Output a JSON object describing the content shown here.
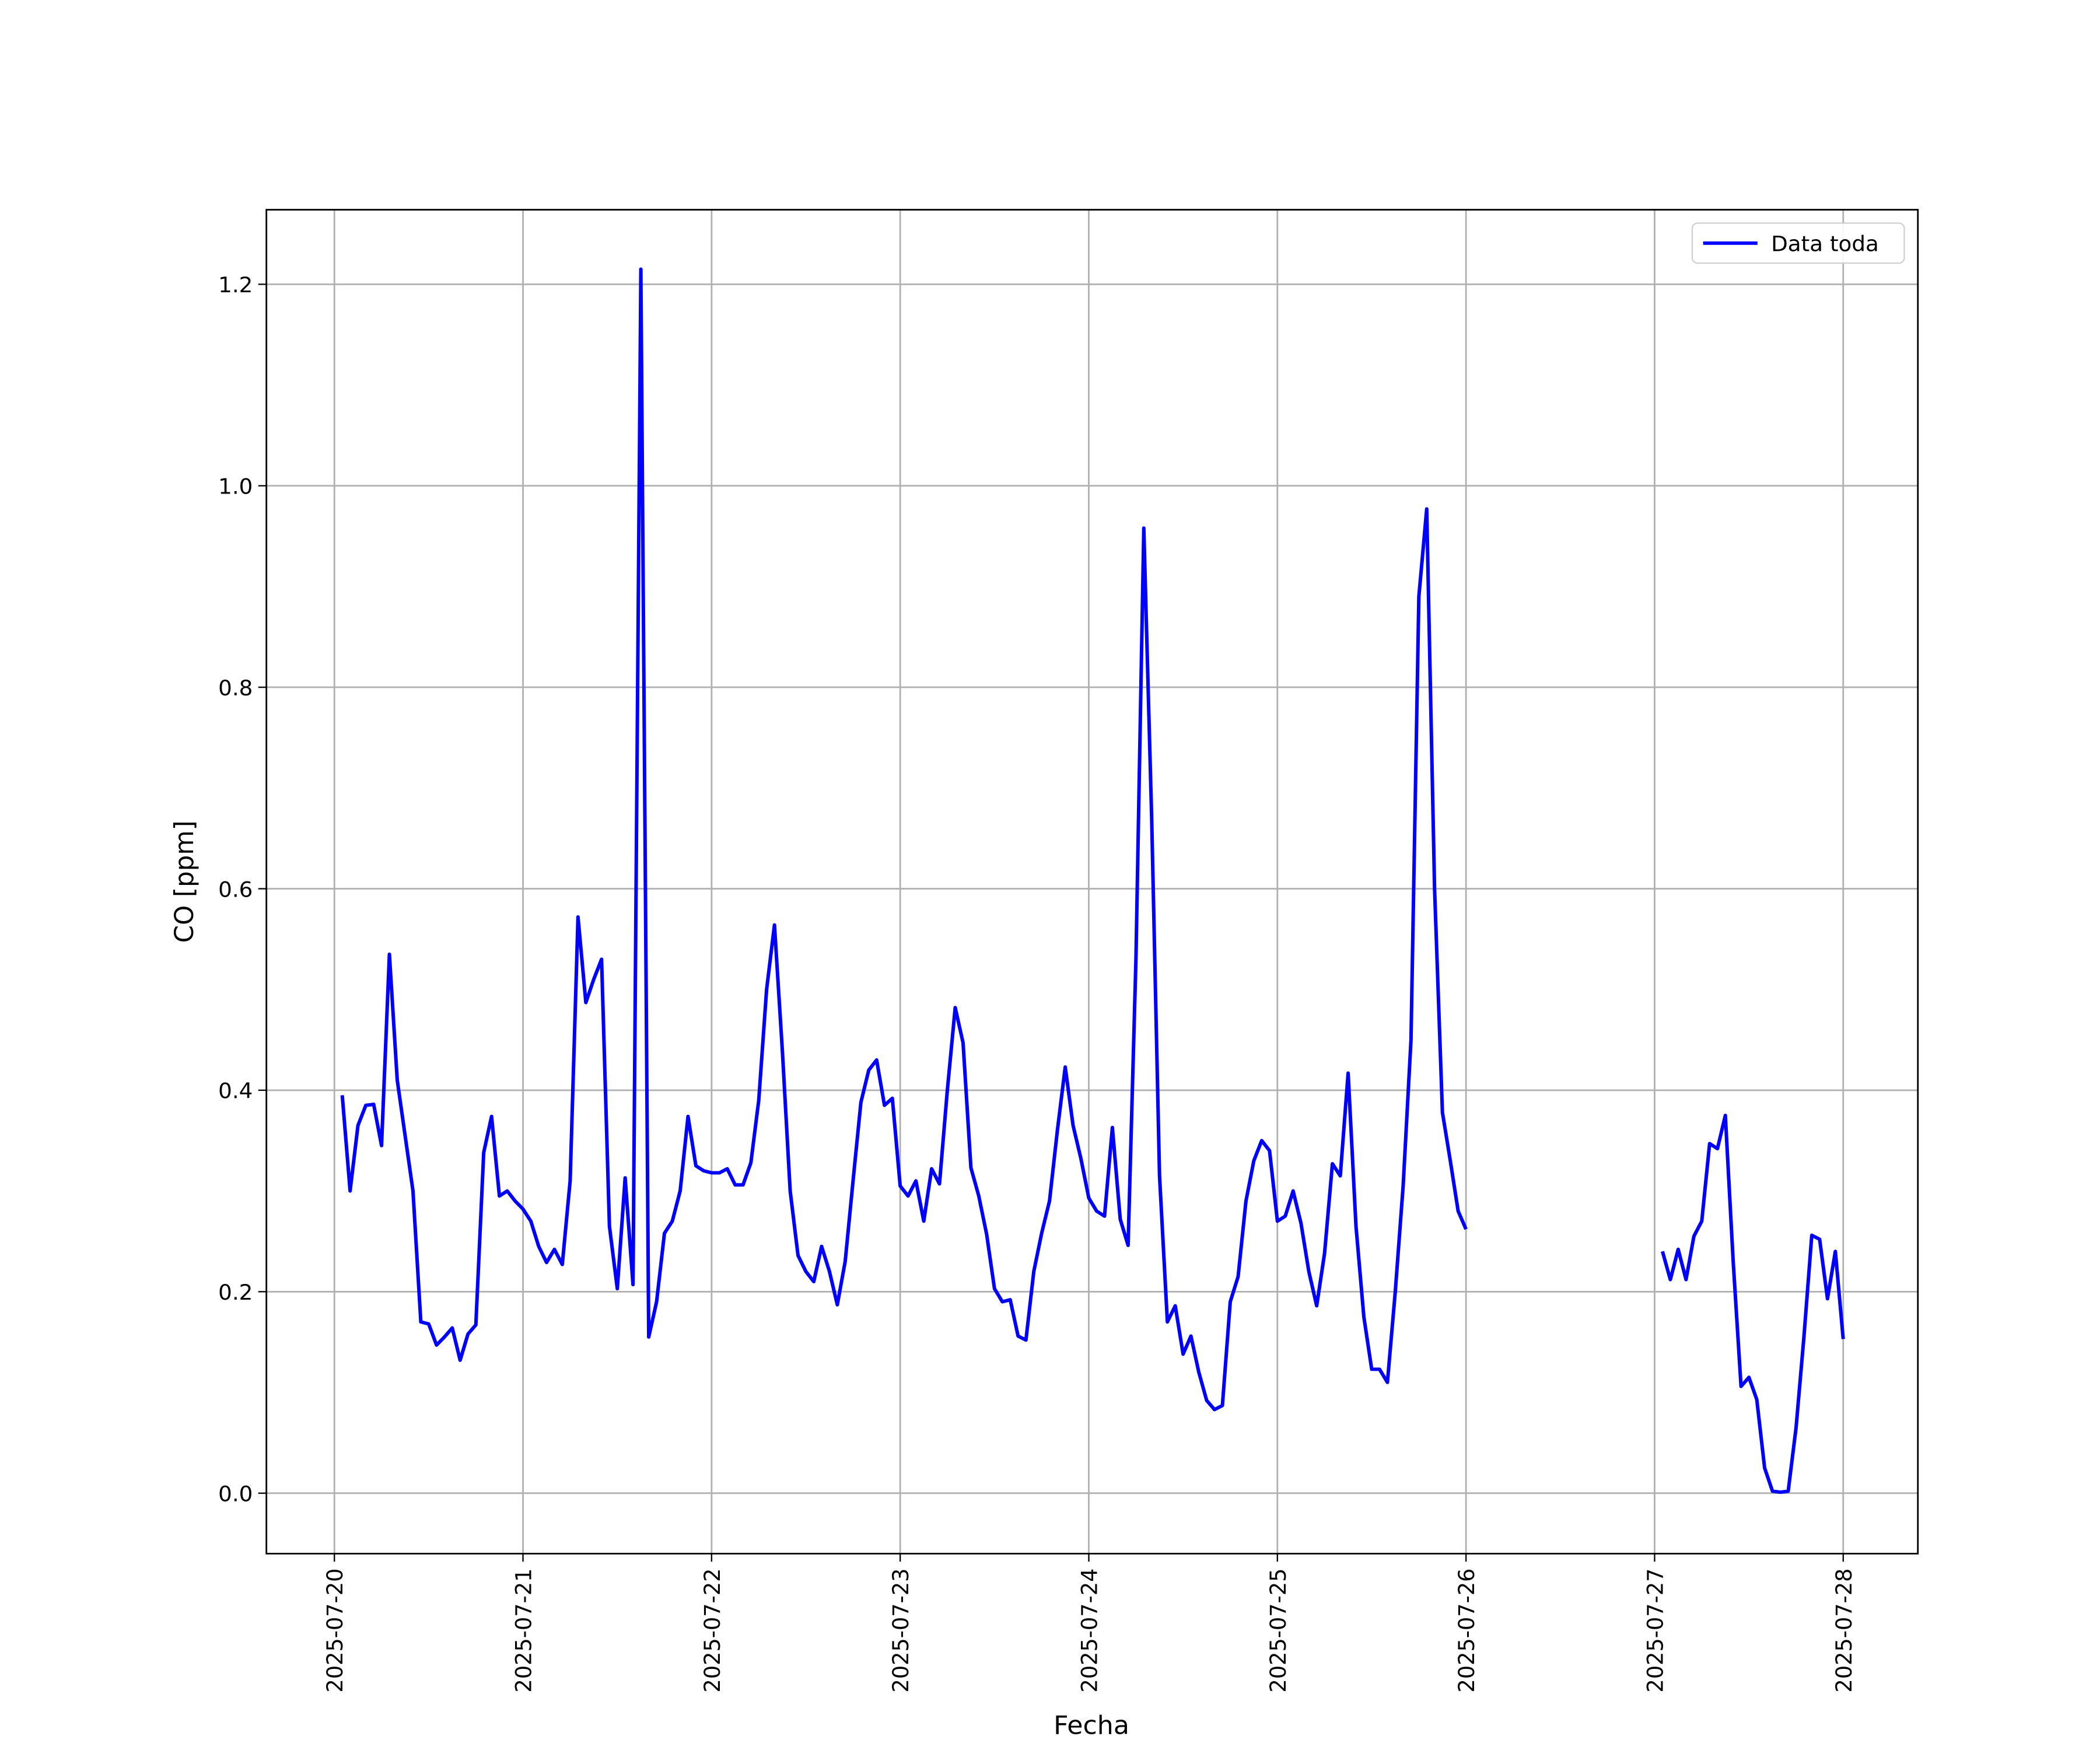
{
  "chart_data": {
    "type": "line",
    "xlabel": "Fecha",
    "ylabel": "CO [ppm]",
    "grid": true,
    "legend": "upper right",
    "x": [
      "2025-07-20 01:00",
      "2025-07-20 02:00",
      "2025-07-20 03:00",
      "2025-07-20 04:00",
      "2025-07-20 05:00",
      "2025-07-20 06:00",
      "2025-07-20 07:00",
      "2025-07-20 08:00",
      "2025-07-20 09:00",
      "2025-07-20 10:00",
      "2025-07-20 11:00",
      "2025-07-20 12:00",
      "2025-07-20 13:00",
      "2025-07-20 14:00",
      "2025-07-20 15:00",
      "2025-07-20 16:00",
      "2025-07-20 17:00",
      "2025-07-20 18:00",
      "2025-07-20 19:00",
      "2025-07-20 20:00",
      "2025-07-20 21:00",
      "2025-07-20 22:00",
      "2025-07-20 23:00",
      "2025-07-21 00:00",
      "2025-07-21 01:00",
      "2025-07-21 02:00",
      "2025-07-21 03:00",
      "2025-07-21 04:00",
      "2025-07-21 05:00",
      "2025-07-21 06:00",
      "2025-07-21 07:00",
      "2025-07-21 08:00",
      "2025-07-21 09:00",
      "2025-07-21 10:00",
      "2025-07-21 11:00",
      "2025-07-21 12:00",
      "2025-07-21 13:00",
      "2025-07-21 14:00",
      "2025-07-21 15:00",
      "2025-07-21 16:00",
      "2025-07-21 17:00",
      "2025-07-21 18:00",
      "2025-07-21 19:00",
      "2025-07-21 20:00",
      "2025-07-21 21:00",
      "2025-07-21 22:00",
      "2025-07-21 23:00",
      "2025-07-22 00:00",
      "2025-07-22 01:00",
      "2025-07-22 02:00",
      "2025-07-22 03:00",
      "2025-07-22 04:00",
      "2025-07-22 05:00",
      "2025-07-22 06:00",
      "2025-07-22 07:00",
      "2025-07-22 08:00",
      "2025-07-22 09:00",
      "2025-07-22 10:00",
      "2025-07-22 11:00",
      "2025-07-22 12:00",
      "2025-07-22 13:00",
      "2025-07-22 14:00",
      "2025-07-22 15:00",
      "2025-07-22 16:00",
      "2025-07-22 17:00",
      "2025-07-22 18:00",
      "2025-07-22 19:00",
      "2025-07-22 20:00",
      "2025-07-22 21:00",
      "2025-07-22 22:00",
      "2025-07-22 23:00",
      "2025-07-23 00:00",
      "2025-07-23 01:00",
      "2025-07-23 02:00",
      "2025-07-23 03:00",
      "2025-07-23 04:00",
      "2025-07-23 05:00",
      "2025-07-23 06:00",
      "2025-07-23 07:00",
      "2025-07-23 08:00",
      "2025-07-23 09:00",
      "2025-07-23 10:00",
      "2025-07-23 11:00",
      "2025-07-23 12:00",
      "2025-07-23 13:00",
      "2025-07-23 14:00",
      "2025-07-23 15:00",
      "2025-07-23 16:00",
      "2025-07-23 17:00",
      "2025-07-23 18:00",
      "2025-07-23 19:00",
      "2025-07-23 20:00",
      "2025-07-23 21:00",
      "2025-07-23 22:00",
      "2025-07-23 23:00",
      "2025-07-24 00:00",
      "2025-07-24 01:00",
      "2025-07-24 02:00",
      "2025-07-24 03:00",
      "2025-07-24 04:00",
      "2025-07-24 05:00",
      "2025-07-24 06:00",
      "2025-07-24 07:00",
      "2025-07-24 08:00",
      "2025-07-24 09:00",
      "2025-07-24 10:00",
      "2025-07-24 11:00",
      "2025-07-24 12:00",
      "2025-07-24 13:00",
      "2025-07-24 14:00",
      "2025-07-24 15:00",
      "2025-07-24 16:00",
      "2025-07-24 17:00",
      "2025-07-24 18:00",
      "2025-07-24 19:00",
      "2025-07-24 20:00",
      "2025-07-24 21:00",
      "2025-07-24 22:00",
      "2025-07-24 23:00",
      "2025-07-25 00:00",
      "2025-07-25 01:00",
      "2025-07-25 02:00",
      "2025-07-25 03:00",
      "2025-07-25 04:00",
      "2025-07-25 05:00",
      "2025-07-25 06:00",
      "2025-07-25 07:00",
      "2025-07-25 08:00",
      "2025-07-25 09:00",
      "2025-07-25 10:00",
      "2025-07-25 11:00",
      "2025-07-25 12:00",
      "2025-07-25 13:00",
      "2025-07-25 14:00",
      "2025-07-25 15:00",
      "2025-07-25 16:00",
      "2025-07-25 17:00",
      "2025-07-25 18:00",
      "2025-07-25 19:00",
      "2025-07-25 20:00",
      "2025-07-25 21:00",
      "2025-07-25 22:00",
      "2025-07-25 23:00",
      "2025-07-26 00:00",
      "2025-07-26 01:00",
      "2025-07-27 01:00",
      "2025-07-27 02:00",
      "2025-07-27 03:00",
      "2025-07-27 04:00",
      "2025-07-27 05:00",
      "2025-07-27 06:00",
      "2025-07-27 07:00",
      "2025-07-27 08:00",
      "2025-07-27 09:00",
      "2025-07-27 10:00",
      "2025-07-27 11:00",
      "2025-07-27 12:00",
      "2025-07-27 13:00",
      "2025-07-27 14:00",
      "2025-07-27 15:00",
      "2025-07-27 16:00",
      "2025-07-27 17:00",
      "2025-07-27 18:00",
      "2025-07-27 19:00",
      "2025-07-27 20:00",
      "2025-07-27 21:00",
      "2025-07-27 22:00",
      "2025-07-27 23:00",
      "2025-07-28 00:00"
    ],
    "series": [
      {
        "name": "Data toda",
        "color": "#0000ff",
        "values": [
          0.395,
          0.3,
          0.365,
          0.385,
          0.386,
          0.345,
          0.535,
          0.41,
          0.355,
          0.3,
          0.17,
          0.168,
          0.147,
          0.155,
          0.164,
          0.132,
          0.158,
          0.167,
          0.338,
          0.374,
          0.295,
          0.3,
          0.29,
          0.282,
          0.27,
          0.245,
          0.229,
          0.242,
          0.227,
          0.31,
          0.572,
          0.487,
          0.51,
          0.53,
          0.265,
          0.203,
          0.313,
          0.207,
          1.215,
          0.155,
          0.19,
          0.258,
          0.27,
          0.3,
          0.374,
          0.325,
          0.32,
          0.318,
          0.318,
          0.322,
          0.306,
          0.306,
          0.328,
          0.39,
          0.5,
          0.564,
          0.44,
          0.3,
          0.236,
          0.22,
          0.21,
          0.245,
          0.22,
          0.187,
          0.23,
          0.31,
          0.388,
          0.42,
          0.43,
          0.385,
          0.392,
          0.305,
          0.295,
          0.31,
          0.27,
          0.322,
          0.307,
          0.4,
          0.482,
          0.447,
          0.323,
          0.295,
          0.257,
          0.203,
          0.19,
          0.192,
          0.156,
          0.152,
          0.22,
          0.258,
          0.29,
          0.36,
          0.423,
          0.365,
          0.332,
          0.293,
          0.28,
          0.275,
          0.363,
          0.272,
          0.246,
          0.53,
          0.958,
          0.67,
          0.315,
          0.17,
          0.186,
          0.138,
          0.156,
          0.12,
          0.092,
          0.083,
          0.087,
          0.19,
          0.215,
          0.29,
          0.33,
          0.35,
          0.34,
          0.27,
          0.275,
          0.3,
          0.268,
          0.22,
          0.186,
          0.238,
          0.327,
          0.315,
          0.417,
          0.265,
          0.175,
          0.123,
          0.123,
          0.11,
          0.2,
          0.305,
          0.45,
          0.89,
          0.977,
          0.6,
          0.378,
          0.33,
          0.28,
          0.262,
          null,
          0.24,
          0.212,
          0.242,
          0.212,
          0.255,
          0.27,
          0.347,
          0.342,
          0.375,
          0.23,
          0.106,
          0.115,
          0.093,
          0.025,
          0.002,
          0.001,
          0.002,
          0.065,
          0.155,
          0.256,
          0.252,
          0.193,
          0.24,
          0.153
        ]
      }
    ],
    "xlim": [
      "2025-07-19 15:21",
      "2025-07-28 09:30"
    ],
    "xticks": [
      "2025-07-20",
      "2025-07-21",
      "2025-07-22",
      "2025-07-23",
      "2025-07-24",
      "2025-07-25",
      "2025-07-26",
      "2025-07-27",
      "2025-07-28"
    ],
    "ylim": [
      -0.06,
      1.274
    ],
    "yticks": [
      {
        "value": 0,
        "label": "0.0"
      },
      0.2,
      0.4,
      0.6,
      0.8,
      {
        "value": 1,
        "label": "1.0"
      },
      1.2
    ]
  }
}
